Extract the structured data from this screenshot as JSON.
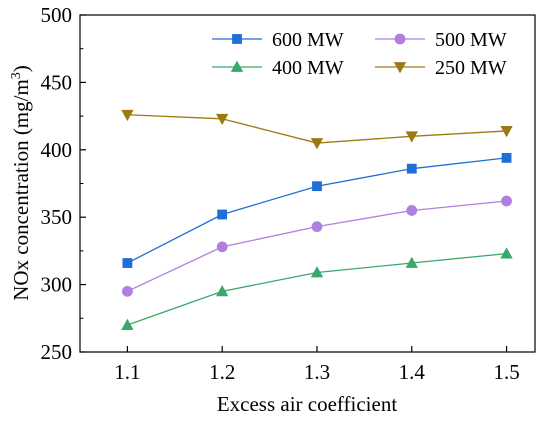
{
  "chart_data": {
    "type": "line",
    "x": [
      1.1,
      1.2,
      1.3,
      1.4,
      1.5
    ],
    "x_tick_labels": [
      "1.1",
      "1.2",
      "1.3",
      "1.4",
      "1.5"
    ],
    "y_tick_labels": [
      "250",
      "300",
      "350",
      "400",
      "450",
      "500"
    ],
    "y_ticks": [
      250,
      300,
      350,
      400,
      450,
      500
    ],
    "xlim": [
      1.05,
      1.53
    ],
    "ylim": [
      250,
      500
    ],
    "xlabel": "Excess air coefficient",
    "ylabel": "NOx concentration (mg/m",
    "ylabel_sup": "3",
    "ylabel_end": ")",
    "grid": false,
    "legend_position": "top-right",
    "series": [
      {
        "name": "600 MW",
        "marker": "square",
        "color": "#1f6fd6",
        "values": [
          316,
          352,
          373,
          386,
          394
        ]
      },
      {
        "name": "500 MW",
        "marker": "circle",
        "color": "#b07fe0",
        "values": [
          295,
          328,
          343,
          355,
          362
        ]
      },
      {
        "name": "400 MW",
        "marker": "triangle-up",
        "color": "#3aa86b",
        "values": [
          270,
          295,
          309,
          316,
          323
        ]
      },
      {
        "name": "250 MW",
        "marker": "triangle-down",
        "color": "#9c7a12",
        "values": [
          426,
          423,
          405,
          410,
          414
        ]
      }
    ]
  }
}
